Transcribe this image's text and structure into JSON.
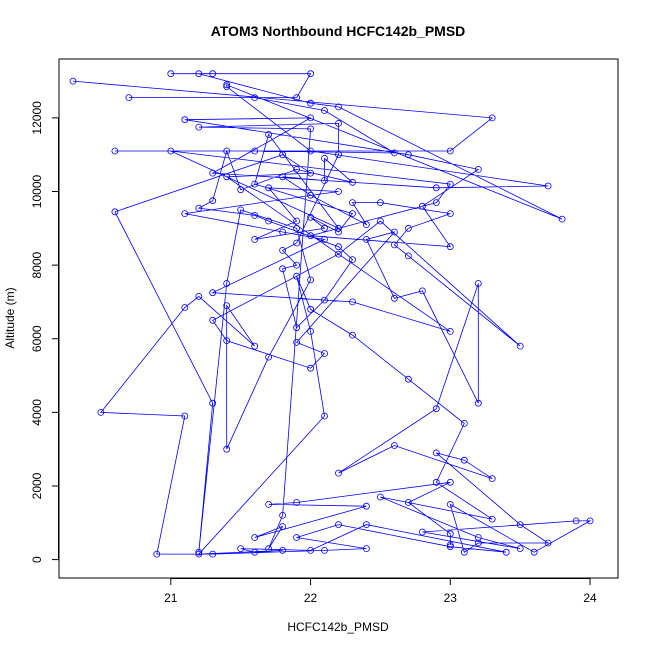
{
  "chart_data": {
    "type": "line",
    "title": "ATOM3 Northbound HCFC142b_PMSD",
    "xlabel": "HCFC142b_PMSD",
    "ylabel": "Altitude (m)",
    "xlim": [
      20.2,
      24.2
    ],
    "ylim": [
      -500,
      13600
    ],
    "xticks": [
      21,
      22,
      23,
      24
    ],
    "yticks": [
      0,
      2000,
      4000,
      6000,
      8000,
      10000,
      12000
    ],
    "grid": false,
    "legend": "none",
    "series": [
      {
        "color": "#0000ff",
        "marker": "open-circle",
        "points": [
          [
            20.3,
            13000
          ],
          [
            23.3,
            12000
          ],
          [
            23.0,
            11100
          ],
          [
            20.6,
            11100
          ],
          [
            21.6,
            11100
          ],
          [
            22.6,
            11050
          ],
          [
            22.1,
            12200
          ],
          [
            21.6,
            12550
          ],
          [
            20.7,
            12550
          ],
          [
            21.9,
            12550
          ],
          [
            22.0,
            13200
          ],
          [
            21.0,
            13200
          ],
          [
            21.3,
            13200
          ],
          [
            21.2,
            13200
          ],
          [
            22.0,
            12400
          ],
          [
            22.2,
            12300
          ],
          [
            23.8,
            9250
          ],
          [
            21.4,
            12900
          ],
          [
            21.4,
            12850
          ],
          [
            22.0,
            11100
          ],
          [
            23.7,
            10150
          ],
          [
            22.9,
            10100
          ],
          [
            21.3,
            10500
          ],
          [
            22.0,
            12000
          ],
          [
            21.1,
            11950
          ],
          [
            22.7,
            11000
          ],
          [
            23.2,
            10600
          ],
          [
            22.8,
            9600
          ],
          [
            23.0,
            8500
          ],
          [
            22.0,
            8800
          ],
          [
            22.9,
            9700
          ],
          [
            23.0,
            10200
          ],
          [
            21.0,
            11100
          ],
          [
            22.2,
            9000
          ],
          [
            21.7,
            11550
          ],
          [
            21.6,
            10200
          ],
          [
            22.3,
            9400
          ],
          [
            22.2,
            8900
          ],
          [
            22.0,
            9300
          ],
          [
            22.1,
            9000
          ],
          [
            21.6,
            8700
          ],
          [
            21.9,
            9200
          ],
          [
            21.7,
            10100
          ],
          [
            22.2,
            10000
          ],
          [
            21.1,
            9400
          ],
          [
            21.8,
            8900
          ],
          [
            22.1,
            8700
          ],
          [
            21.3,
            7250
          ],
          [
            22.3,
            7000
          ],
          [
            23.0,
            6200
          ],
          [
            21.4,
            10400
          ],
          [
            22.0,
            10500
          ],
          [
            21.8,
            11000
          ],
          [
            20.6,
            9450
          ],
          [
            21.3,
            4250
          ],
          [
            21.2,
            200
          ],
          [
            21.4,
            7500
          ],
          [
            21.5,
            9500
          ],
          [
            21.9,
            9000
          ],
          [
            22.0,
            7600
          ],
          [
            21.7,
            5500
          ],
          [
            21.4,
            3000
          ],
          [
            21.4,
            6900
          ],
          [
            21.6,
            5800
          ],
          [
            21.2,
            7150
          ],
          [
            21.1,
            6850
          ],
          [
            20.5,
            4000
          ],
          [
            21.1,
            3900
          ],
          [
            20.9,
            150
          ],
          [
            21.3,
            150
          ],
          [
            22.1,
            250
          ],
          [
            22.4,
            300
          ],
          [
            21.9,
            600
          ],
          [
            22.2,
            950
          ],
          [
            23.0,
            350
          ],
          [
            23.4,
            200
          ],
          [
            22.4,
            950
          ],
          [
            22.0,
            250
          ],
          [
            21.5,
            300
          ],
          [
            21.6,
            200
          ],
          [
            21.8,
            250
          ],
          [
            21.2,
            150
          ],
          [
            22.1,
            3900
          ],
          [
            22.0,
            6200
          ],
          [
            21.9,
            7700
          ],
          [
            22.0,
            6800
          ],
          [
            22.3,
            6100
          ],
          [
            22.7,
            4900
          ],
          [
            23.1,
            3700
          ],
          [
            22.9,
            2100
          ],
          [
            23.3,
            1100
          ],
          [
            22.5,
            1700
          ],
          [
            23.2,
            600
          ],
          [
            23.5,
            300
          ],
          [
            22.8,
            750
          ],
          [
            23.9,
            1050
          ],
          [
            24.0,
            1050
          ],
          [
            23.6,
            200
          ],
          [
            23.0,
            1500
          ],
          [
            23.1,
            200
          ],
          [
            23.2,
            450
          ],
          [
            23.7,
            450
          ],
          [
            23.5,
            950
          ],
          [
            22.9,
            2900
          ],
          [
            23.1,
            2700
          ],
          [
            23.3,
            2200
          ],
          [
            22.6,
            3100
          ],
          [
            22.2,
            2350
          ],
          [
            22.9,
            4100
          ],
          [
            23.2,
            7500
          ],
          [
            23.2,
            4250
          ],
          [
            22.8,
            7300
          ],
          [
            22.6,
            7100
          ],
          [
            22.4,
            8700
          ],
          [
            22.6,
            8900
          ],
          [
            21.9,
            5900
          ],
          [
            22.1,
            5600
          ],
          [
            22.0,
            5200
          ],
          [
            21.4,
            5950
          ],
          [
            21.3,
            6500
          ],
          [
            22.2,
            8300
          ],
          [
            22.5,
            9200
          ],
          [
            23.5,
            5800
          ],
          [
            22.7,
            8250
          ],
          [
            22.6,
            8550
          ],
          [
            22.7,
            9000
          ],
          [
            23.0,
            9400
          ],
          [
            22.5,
            9700
          ],
          [
            22.3,
            9700
          ],
          [
            22.4,
            9100
          ],
          [
            22.0,
            9900
          ],
          [
            21.8,
            10400
          ],
          [
            22.1,
            10300
          ],
          [
            22.1,
            10900
          ],
          [
            22.3,
            10250
          ],
          [
            21.9,
            10600
          ],
          [
            21.5,
            10050
          ],
          [
            21.4,
            11100
          ],
          [
            21.3,
            9750
          ],
          [
            21.2,
            9550
          ],
          [
            21.6,
            9350
          ],
          [
            21.7,
            9200
          ],
          [
            22.2,
            8500
          ],
          [
            22.3,
            8150
          ],
          [
            22.1,
            7050
          ],
          [
            21.9,
            6300
          ],
          [
            21.8,
            7900
          ],
          [
            21.9,
            8000
          ],
          [
            21.8,
            8400
          ],
          [
            21.9,
            8600
          ],
          [
            22.2,
            11000
          ],
          [
            22.2,
            11850
          ],
          [
            21.2,
            11750
          ],
          [
            22.0,
            11700
          ],
          [
            21.8,
            1200
          ],
          [
            21.7,
            300
          ],
          [
            21.8,
            900
          ],
          [
            21.6,
            600
          ],
          [
            22.4,
            1450
          ],
          [
            21.7,
            1500
          ],
          [
            21.9,
            1550
          ],
          [
            23.0,
            2100
          ],
          [
            22.7,
            1550
          ],
          [
            23.0,
            700
          ],
          [
            23.0,
            400
          ]
        ]
      }
    ]
  }
}
